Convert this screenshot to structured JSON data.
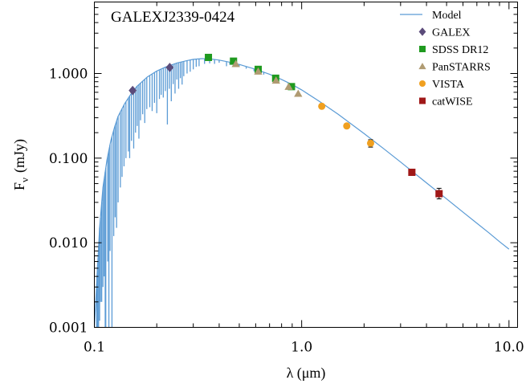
{
  "chart_data": {
    "type": "scatter",
    "title": "GALEXJ2339-0424",
    "xlabel": "λ (μm)",
    "ylabel_main": "F",
    "ylabel_sub": "ν",
    "ylabel_unit": "(mJy)",
    "x_scale": "log",
    "y_scale": "log",
    "xlim": [
      0.1,
      11.0
    ],
    "ylim": [
      0.001,
      7.0
    ],
    "x_ticks": [
      {
        "value": 0.1,
        "label": "0.1"
      },
      {
        "value": 1.0,
        "label": "1.0"
      },
      {
        "value": 10.0,
        "label": "10.0"
      }
    ],
    "y_ticks": [
      {
        "value": 0.001,
        "label": "0.001"
      },
      {
        "value": 0.01,
        "label": "0.010"
      },
      {
        "value": 0.1,
        "label": "0.100"
      },
      {
        "value": 1.0,
        "label": "1.000"
      }
    ],
    "grid": false,
    "legend_position": "top-right",
    "model": {
      "name": "Model",
      "color": "#5b9bd5",
      "smooth": [
        [
          0.1,
          0.0008
        ],
        [
          0.103,
          0.004
        ],
        [
          0.106,
          0.015
        ],
        [
          0.11,
          0.045
        ],
        [
          0.115,
          0.095
        ],
        [
          0.12,
          0.16
        ],
        [
          0.125,
          0.23
        ],
        [
          0.13,
          0.31
        ],
        [
          0.14,
          0.44
        ],
        [
          0.15,
          0.57
        ],
        [
          0.16,
          0.7
        ],
        [
          0.18,
          0.91
        ],
        [
          0.2,
          1.07
        ],
        [
          0.22,
          1.19
        ],
        [
          0.25,
          1.33
        ],
        [
          0.28,
          1.42
        ],
        [
          0.3,
          1.47
        ],
        [
          0.33,
          1.5
        ],
        [
          0.36,
          1.49
        ],
        [
          0.4,
          1.44
        ],
        [
          0.45,
          1.36
        ],
        [
          0.5,
          1.28
        ],
        [
          0.6,
          1.12
        ],
        [
          0.7,
          0.98
        ],
        [
          0.8,
          0.85
        ],
        [
          0.9,
          0.74
        ],
        [
          1.0,
          0.64
        ],
        [
          1.2,
          0.48
        ],
        [
          1.5,
          0.33
        ],
        [
          2.0,
          0.195
        ],
        [
          2.5,
          0.128
        ],
        [
          3.0,
          0.09
        ],
        [
          4.0,
          0.051
        ],
        [
          5.0,
          0.033
        ],
        [
          6.0,
          0.023
        ],
        [
          7.0,
          0.017
        ],
        [
          8.0,
          0.0131
        ],
        [
          9.0,
          0.0103
        ],
        [
          10.0,
          0.0084
        ]
      ],
      "absorption_lines": [
        [
          0.1026,
          0.0008
        ],
        [
          0.103,
          0.0008
        ],
        [
          0.1037,
          0.0008
        ],
        [
          0.1048,
          0.001
        ],
        [
          0.106,
          0.0012
        ],
        [
          0.107,
          0.002
        ],
        [
          0.1085,
          0.002
        ],
        [
          0.11,
          0.003
        ],
        [
          0.1115,
          0.004
        ],
        [
          0.1128,
          0.0009
        ],
        [
          0.1135,
          0.0009
        ],
        [
          0.116,
          0.006
        ],
        [
          0.1175,
          0.0008
        ],
        [
          0.119,
          0.008
        ],
        [
          0.1216,
          0.0009
        ],
        [
          0.124,
          0.012
        ],
        [
          0.126,
          0.02
        ],
        [
          0.128,
          0.015
        ],
        [
          0.1302,
          0.03
        ],
        [
          0.1335,
          0.045
        ],
        [
          0.136,
          0.06
        ],
        [
          0.139,
          0.08
        ],
        [
          0.142,
          0.1
        ],
        [
          0.146,
          0.12
        ],
        [
          0.148,
          0.1
        ],
        [
          0.151,
          0.16
        ],
        [
          0.1548,
          0.13
        ],
        [
          0.158,
          0.2
        ],
        [
          0.161,
          0.24
        ],
        [
          0.164,
          0.17
        ],
        [
          0.167,
          0.28
        ],
        [
          0.171,
          0.33
        ],
        [
          0.175,
          0.26
        ],
        [
          0.179,
          0.38
        ],
        [
          0.185,
          0.4
        ],
        [
          0.19,
          0.36
        ],
        [
          0.195,
          0.45
        ],
        [
          0.2,
          0.34
        ],
        [
          0.206,
          0.5
        ],
        [
          0.21,
          0.56
        ],
        [
          0.215,
          0.52
        ],
        [
          0.22,
          0.62
        ],
        [
          0.225,
          0.25
        ],
        [
          0.23,
          0.66
        ],
        [
          0.235,
          0.47
        ],
        [
          0.24,
          0.75
        ],
        [
          0.245,
          0.58
        ],
        [
          0.25,
          0.85
        ],
        [
          0.255,
          0.66
        ],
        [
          0.26,
          0.88
        ],
        [
          0.265,
          0.74
        ],
        [
          0.27,
          0.93
        ],
        [
          0.28,
          1.0
        ],
        [
          0.29,
          1.05
        ],
        [
          0.3,
          1.12
        ],
        [
          0.31,
          1.2
        ],
        [
          0.32,
          1.22
        ],
        [
          0.34,
          1.3
        ],
        [
          0.36,
          1.32
        ],
        [
          0.38,
          1.3
        ],
        [
          0.4,
          1.34
        ],
        [
          0.434,
          1.22
        ],
        [
          0.45,
          1.27
        ],
        [
          0.4861,
          1.2
        ],
        [
          0.5,
          1.22
        ],
        [
          0.54,
          1.14
        ],
        [
          0.589,
          1.06
        ],
        [
          0.6563,
          0.97
        ]
      ]
    },
    "series": [
      {
        "name": "GALEX",
        "marker": "diamond",
        "color": "#5b4b7a",
        "points": [
          {
            "x": 0.153,
            "y": 0.63,
            "yerr": [
              0.6,
              0.66
            ]
          },
          {
            "x": 0.231,
            "y": 1.18,
            "yerr": [
              1.14,
              1.22
            ]
          }
        ]
      },
      {
        "name": "SDSS DR12",
        "marker": "square",
        "color": "#1f9a1f",
        "points": [
          {
            "x": 0.355,
            "y": 1.55
          },
          {
            "x": 0.469,
            "y": 1.4
          },
          {
            "x": 0.617,
            "y": 1.12
          },
          {
            "x": 0.749,
            "y": 0.88
          },
          {
            "x": 0.893,
            "y": 0.7
          }
        ]
      },
      {
        "name": "PanSTARRS",
        "marker": "triangle",
        "color": "#b09b72",
        "points": [
          {
            "x": 0.481,
            "y": 1.3
          },
          {
            "x": 0.617,
            "y": 1.06
          },
          {
            "x": 0.752,
            "y": 0.83
          },
          {
            "x": 0.866,
            "y": 0.7
          },
          {
            "x": 0.962,
            "y": 0.58
          }
        ]
      },
      {
        "name": "VISTA",
        "marker": "circle",
        "color": "#f0a020",
        "points": [
          {
            "x": 1.25,
            "y": 0.41
          },
          {
            "x": 1.65,
            "y": 0.24
          },
          {
            "x": 2.15,
            "y": 0.15,
            "yerr": [
              0.135,
              0.165
            ]
          }
        ]
      },
      {
        "name": "catWISE",
        "marker": "square",
        "color": "#a01818",
        "points": [
          {
            "x": 3.4,
            "y": 0.068
          },
          {
            "x": 4.6,
            "y": 0.038,
            "yerr": [
              0.033,
              0.044
            ]
          }
        ]
      }
    ]
  }
}
